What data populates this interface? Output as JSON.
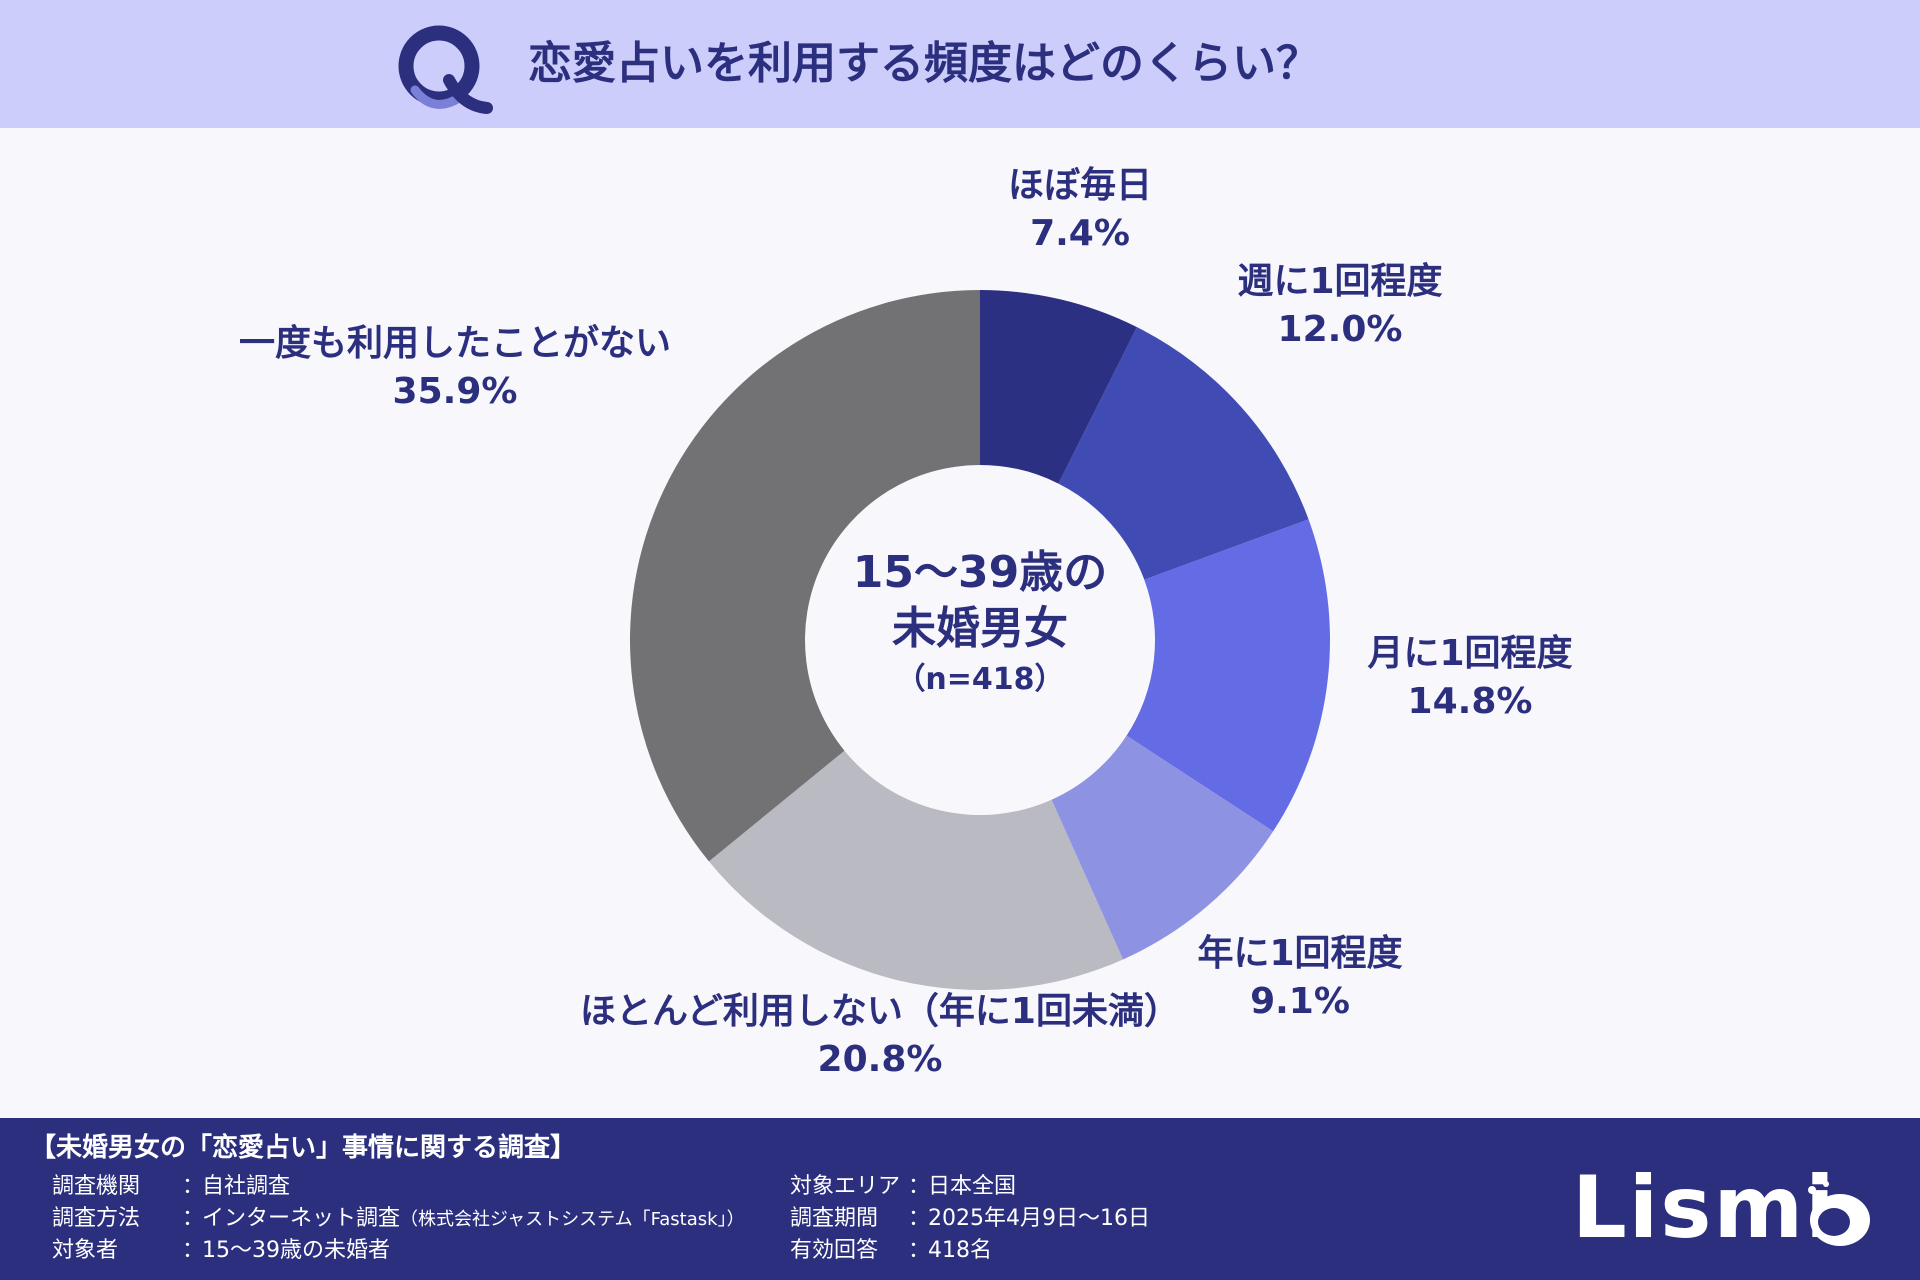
{
  "header": {
    "logo_letter": "Q",
    "title": "恋愛占いを利用する頻度はどのくらい？"
  },
  "center": {
    "line1": "15〜39歳の",
    "line2": "未婚男女",
    "n": "（n=418）"
  },
  "colors": {
    "header_bg": "#cccdfb",
    "accent": "#2b2f7e",
    "footer_bg": "#2b2f7e"
  },
  "chart_data": {
    "type": "pie",
    "subtype": "donut",
    "unit": "%",
    "categories": [
      "ほぼ毎日",
      "週に1回程度",
      "月に1回程度",
      "年に1回程度",
      "ほとんど利用しない（年に1回未満）",
      "一度も利用したことがない"
    ],
    "values": [
      7.4,
      12.0,
      14.8,
      9.1,
      20.8,
      35.9
    ],
    "value_labels": [
      "7.4%",
      "12.0%",
      "14.8%",
      "9.1%",
      "20.8%",
      "35.9%"
    ],
    "colors": [
      "#2c3083",
      "#414bb4",
      "#636be5",
      "#8d93e2",
      "#b9bac2",
      "#727275"
    ],
    "start": "12 o'clock",
    "direction": "clockwise"
  },
  "footer": {
    "title": "【未婚男女の「恋愛占い」事情に関する調査】",
    "left_rows": [
      {
        "key": "調査機関",
        "value": "自社調査",
        "note": ""
      },
      {
        "key": "調査方法",
        "value": "インターネット調査",
        "note": "（株式会社ジャストシステム「Fastask」）"
      },
      {
        "key": "対象者",
        "value": "15〜39歳の未婚者",
        "note": ""
      }
    ],
    "right_rows": [
      {
        "key": "対象エリア",
        "value": "日本全国"
      },
      {
        "key": "調査期間",
        "value": "2025年4月9日〜16日"
      },
      {
        "key": "有効回答",
        "value": "418名"
      }
    ],
    "separator": "：",
    "brand": "Lismi"
  }
}
